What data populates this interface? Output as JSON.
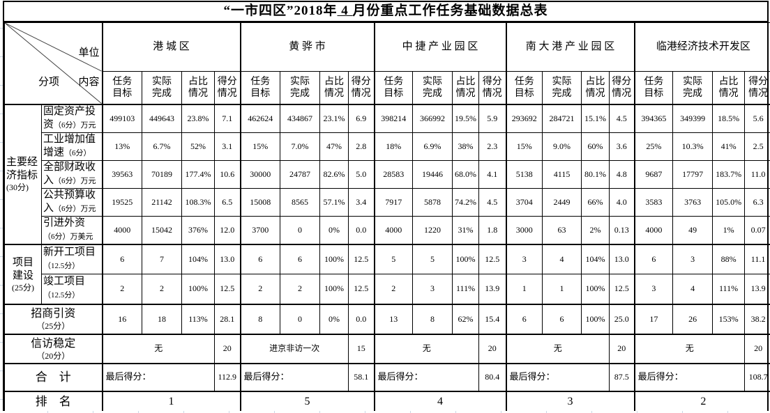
{
  "colors": {
    "border": "#000000",
    "faint_grid": "#c9d6e5"
  },
  "title": {
    "prefix": "“一市四区”2018年",
    "blank": " 4 ",
    "suffix": "月份重点工作任务基础数据总表"
  },
  "corner": {
    "unit": "单位",
    "content": "内容",
    "item": "分项"
  },
  "regions": [
    "港 城 区",
    "黄 骅 市",
    "中 捷 产 业 园 区",
    "南 大 港 产 业 园 区",
    "临港经济技术开发区"
  ],
  "sub_headers": [
    "任务\n目标",
    "实际\n完成",
    "占比\n情况",
    "得分\n情况"
  ],
  "rows": [
    {
      "group": {
        "name": "主要经\n济指标",
        "note": "(30分)",
        "span": 5
      },
      "label": {
        "name": "固定资产投资",
        "note": "（6分）万元"
      },
      "values": [
        "499103",
        "449643",
        "23.8%",
        "7.1",
        "462624",
        "434867",
        "23.1%",
        "6.9",
        "398214",
        "366992",
        "19.5%",
        "5.9",
        "293692",
        "284721",
        "15.1%",
        "4.5",
        "394365",
        "349399",
        "18.5%",
        "5.6"
      ]
    },
    {
      "label": {
        "name": "工业增加值增速",
        "note": "（6分）"
      },
      "values": [
        "13%",
        "6.7%",
        "52%",
        "3.1",
        "15%",
        "7.0%",
        "47%",
        "2.8",
        "18%",
        "6.9%",
        "38%",
        "2.3",
        "15%",
        "9.0%",
        "60%",
        "3.6",
        "25%",
        "10.3%",
        "41%",
        "2.5"
      ]
    },
    {
      "label": {
        "name": "全部财政收入",
        "note": "（6分）万元"
      },
      "values": [
        "39563",
        "70189",
        "177.4%",
        "10.6",
        "30000",
        "24787",
        "82.6%",
        "5.0",
        "28583",
        "19446",
        "68.0%",
        "4.1",
        "5138",
        "4115",
        "80.1%",
        "4.8",
        "9687",
        "17797",
        "183.7%",
        "11.0"
      ]
    },
    {
      "label": {
        "name": "公共预算收入",
        "note": "（6分）万元"
      },
      "values": [
        "19525",
        "21142",
        "108.3%",
        "6.5",
        "15008",
        "8565",
        "57.1%",
        "3.4",
        "7917",
        "5878",
        "74.2%",
        "4.5",
        "3704",
        "2449",
        "66%",
        "4.0",
        "3583",
        "3763",
        "105.0%",
        "6.3"
      ]
    },
    {
      "label": {
        "name": "引进外资\n",
        "note": "（6分）万美元"
      },
      "values": [
        "4000",
        "15042",
        "376%",
        "12.0",
        "3700",
        "0",
        "0%",
        "0.0",
        "4000",
        "1220",
        "31%",
        "1.8",
        "3000",
        "63",
        "2%",
        "0.13",
        "4000",
        "49",
        "1%",
        "0.07"
      ]
    },
    {
      "group": {
        "name": "项目\n建设",
        "note": "(25分)",
        "span": 2
      },
      "thick": true,
      "label": {
        "name": "新开工项目\n",
        "note": "（12.5分）"
      },
      "values": [
        "6",
        "7",
        "104%",
        "13.0",
        "6",
        "6",
        "100%",
        "12.5",
        "5",
        "5",
        "100%",
        "12.5",
        "3",
        "4",
        "104%",
        "13.0",
        "6",
        "3",
        "88%",
        "11.1"
      ]
    },
    {
      "label": {
        "name": "竣工项目\n",
        "note": "（12.5分）"
      },
      "values": [
        "2",
        "2",
        "100%",
        "12.5",
        "2",
        "2",
        "100%",
        "12.5",
        "2",
        "3",
        "111%",
        "13.9",
        "1",
        "1",
        "100%",
        "12.5",
        "3",
        "4",
        "111%",
        "13.9"
      ]
    },
    {
      "merged_label": {
        "name": "招商引资",
        "note": "（25分）"
      },
      "thick": true,
      "values": [
        "16",
        "18",
        "113%",
        "28.1",
        "8",
        "0",
        "0%",
        "0.0",
        "13",
        "8",
        "62%",
        "15.4",
        "6",
        "6",
        "100%",
        "25.0",
        "17",
        "26",
        "153%",
        "38.2"
      ]
    }
  ],
  "petition": {
    "label": {
      "name": "信访稳定",
      "note": "（20分）"
    },
    "cells": [
      {
        "text": "无",
        "score": "20"
      },
      {
        "text": "进京非访一次",
        "score": "15"
      },
      {
        "text": "无",
        "score": "20"
      },
      {
        "text": "无",
        "score": "20"
      },
      {
        "text": "无",
        "score": "20"
      }
    ]
  },
  "total": {
    "label": "合　计",
    "prefix": "最后得分：",
    "scores": [
      "112.9",
      "58.1",
      "80.4",
      "87.5",
      "108.7"
    ]
  },
  "rank": {
    "label": "排　名",
    "values": [
      "1",
      "5",
      "4",
      "3",
      "2"
    ]
  }
}
